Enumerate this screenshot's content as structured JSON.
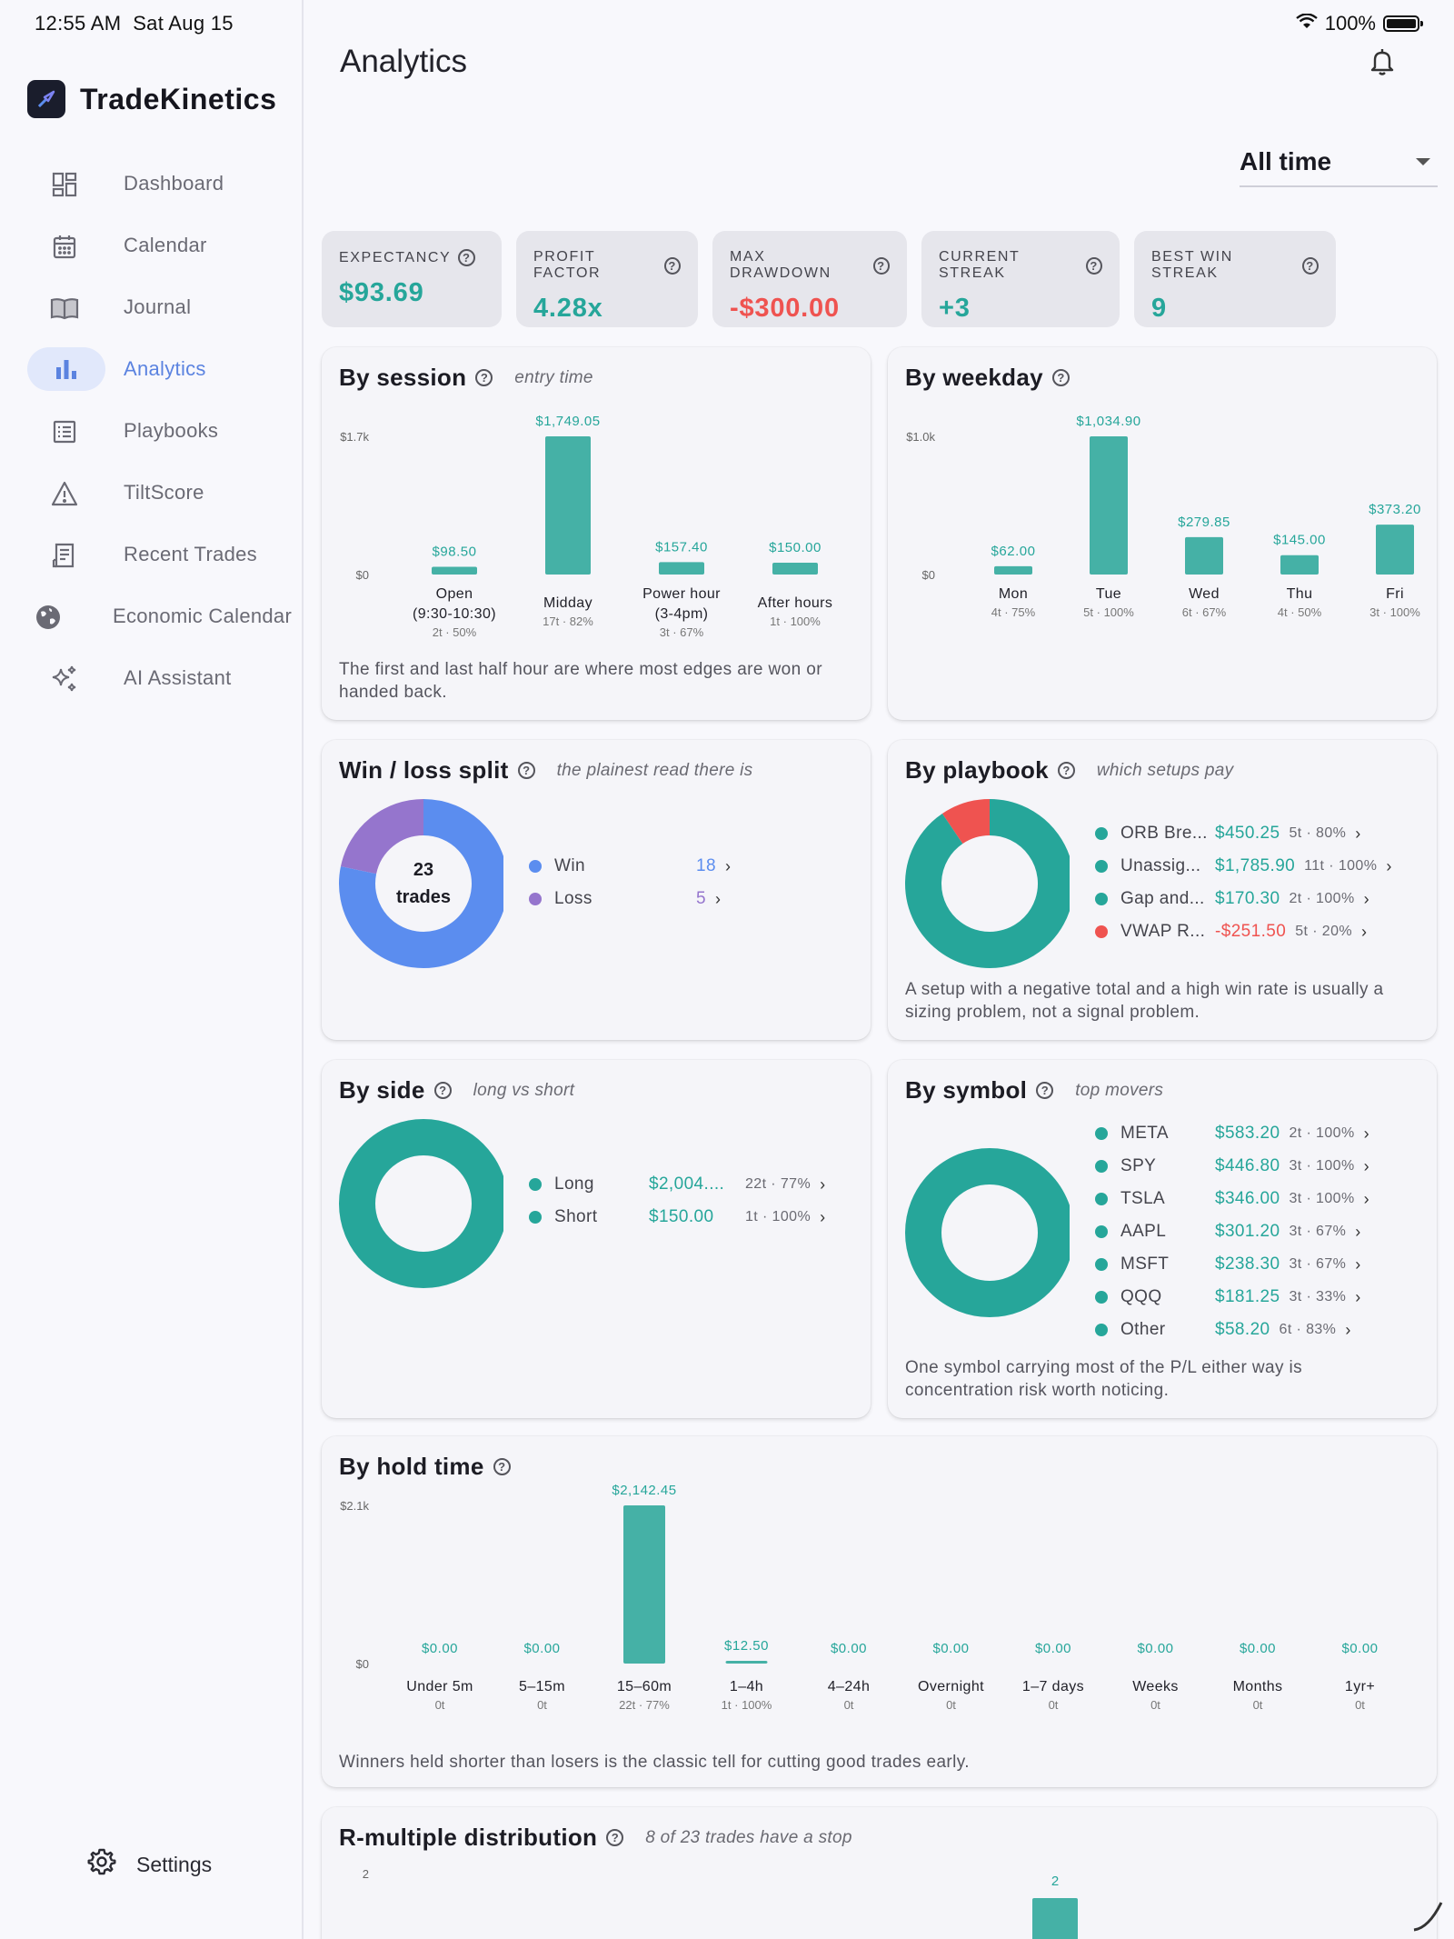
{
  "status_bar": {
    "time": "12:55 AM",
    "date": "Sat Aug 15",
    "battery": "100%"
  },
  "brand": {
    "name": "TradeKinetics"
  },
  "nav": {
    "items": [
      {
        "label": "Dashboard",
        "icon": "dashboard-icon"
      },
      {
        "label": "Calendar",
        "icon": "calendar-icon"
      },
      {
        "label": "Journal",
        "icon": "journal-icon"
      },
      {
        "label": "Analytics",
        "icon": "bar-chart-icon",
        "active": true
      },
      {
        "label": "Playbooks",
        "icon": "list-icon"
      },
      {
        "label": "TiltScore",
        "icon": "warning-icon"
      },
      {
        "label": "Recent Trades",
        "icon": "receipt-icon"
      },
      {
        "label": "Economic Calendar",
        "icon": "globe-icon"
      },
      {
        "label": "AI Assistant",
        "icon": "sparkles-icon"
      }
    ],
    "settings": "Settings"
  },
  "page": {
    "title": "Analytics",
    "timeframe": "All time"
  },
  "stats": [
    {
      "label": "EXPECTANCY",
      "value": "$93.69",
      "color": "#26a69a"
    },
    {
      "label": "PROFIT FACTOR",
      "value": "4.28x",
      "color": "#26a69a"
    },
    {
      "label": "MAX DRAWDOWN",
      "value": "-$300.00",
      "color": "#ef5350"
    },
    {
      "label": "CURRENT STREAK",
      "value": "+3",
      "color": "#26a69a"
    },
    {
      "label": "BEST WIN STREAK",
      "value": "9",
      "color": "#26a69a"
    }
  ],
  "colors": {
    "teal": "#26a69a",
    "bar": "#45b1a6",
    "red": "#ef5350",
    "blue": "#5b8def",
    "purple": "#9575cd"
  },
  "cards": {
    "session": {
      "title": "By session",
      "subtitle": "entry time",
      "note": "The first and last half hour are where most edges are won or handed back."
    },
    "weekday": {
      "title": "By weekday"
    },
    "winloss": {
      "title": "Win / loss split",
      "subtitle": "the plainest read there is",
      "center_top": "23",
      "center_bottom": "trades",
      "items": [
        {
          "name": "Win",
          "value": "18",
          "color": "#5b8def"
        },
        {
          "name": "Loss",
          "value": "5",
          "color": "#9575cd"
        }
      ]
    },
    "playbook": {
      "title": "By playbook",
      "subtitle": "which setups pay",
      "items": [
        {
          "name": "ORB Bre...",
          "value": "$450.25",
          "meta": "5t · 80%",
          "color": "#26a69a"
        },
        {
          "name": "Unassig...",
          "value": "$1,785.90",
          "meta": "11t · 100%",
          "color": "#26a69a"
        },
        {
          "name": "Gap and...",
          "value": "$170.30",
          "meta": "2t · 100%",
          "color": "#26a69a"
        },
        {
          "name": "VWAP R...",
          "value": "-$251.50",
          "meta": "5t · 20%",
          "color": "#ef5350"
        }
      ],
      "note": "A setup with a negative total and a high win rate is usually a sizing problem, not a signal problem."
    },
    "side": {
      "title": "By side",
      "subtitle": "long vs short",
      "items": [
        {
          "name": "Long",
          "value": "$2,004....",
          "meta": "22t · 77%",
          "color": "#26a69a"
        },
        {
          "name": "Short",
          "value": "$150.00",
          "meta": "1t · 100%",
          "color": "#26a69a"
        }
      ]
    },
    "symbol": {
      "title": "By symbol",
      "subtitle": "top movers",
      "items": [
        {
          "name": "META",
          "value": "$583.20",
          "meta": "2t · 100%",
          "color": "#26a69a"
        },
        {
          "name": "SPY",
          "value": "$446.80",
          "meta": "3t · 100%",
          "color": "#26a69a"
        },
        {
          "name": "TSLA",
          "value": "$346.00",
          "meta": "3t · 100%",
          "color": "#26a69a"
        },
        {
          "name": "AAPL",
          "value": "$301.20",
          "meta": "3t · 67%",
          "color": "#26a69a"
        },
        {
          "name": "MSFT",
          "value": "$238.30",
          "meta": "3t · 67%",
          "color": "#26a69a"
        },
        {
          "name": "QQQ",
          "value": "$181.25",
          "meta": "3t · 33%",
          "color": "#26a69a"
        },
        {
          "name": "Other",
          "value": "$58.20",
          "meta": "6t · 83%",
          "color": "#26a69a"
        }
      ],
      "note": "One symbol carrying most of the P/L either way is concentration risk worth noticing."
    },
    "hold": {
      "title": "By hold time",
      "note": "Winners held shorter than losers is the classic tell for cutting good trades early."
    },
    "rmultiple": {
      "title": "R-multiple distribution",
      "subtitle": "8 of 23 trades have a stop"
    }
  },
  "chart_data": [
    {
      "id": "session",
      "type": "bar",
      "ylim": [
        0,
        1749.05
      ],
      "ytick_labels": [
        "$1.7k",
        "$0"
      ],
      "categories": [
        {
          "name": [
            "Open",
            "(9:30-10:30)"
          ],
          "meta": "2t · 50%"
        },
        {
          "name": [
            "Midday"
          ],
          "meta": "17t · 82%"
        },
        {
          "name": [
            "Power hour",
            "(3-4pm)"
          ],
          "meta": "3t · 67%"
        },
        {
          "name": [
            "After hours"
          ],
          "meta": "1t · 100%"
        }
      ],
      "values": [
        98.5,
        1749.05,
        157.4,
        150.0
      ],
      "value_labels": [
        "$98.50",
        "$1,749.05",
        "$157.40",
        "$150.00"
      ]
    },
    {
      "id": "weekday",
      "type": "bar",
      "ylim": [
        0,
        1034.9
      ],
      "ytick_labels": [
        "$1.0k",
        "$0"
      ],
      "categories": [
        {
          "name": [
            "Mon"
          ],
          "meta": "4t · 75%"
        },
        {
          "name": [
            "Tue"
          ],
          "meta": "5t · 100%"
        },
        {
          "name": [
            "Wed"
          ],
          "meta": "6t · 67%"
        },
        {
          "name": [
            "Thu"
          ],
          "meta": "4t · 50%"
        },
        {
          "name": [
            "Fri"
          ],
          "meta": "3t · 100%"
        }
      ],
      "values": [
        62.0,
        1034.9,
        279.85,
        145.0,
        373.2
      ],
      "value_labels": [
        "$62.00",
        "$1,034.90",
        "$279.85",
        "$145.00",
        "$373.20"
      ]
    },
    {
      "id": "winloss",
      "type": "pie",
      "categories": [
        "Win",
        "Loss"
      ],
      "values": [
        18,
        5
      ]
    },
    {
      "id": "playbook",
      "type": "pie",
      "categories": [
        "ORB Bre...",
        "Unassig...",
        "Gap and...",
        "VWAP R..."
      ],
      "values": [
        450.25,
        1785.9,
        170.3,
        -251.5
      ]
    },
    {
      "id": "side",
      "type": "pie",
      "categories": [
        "Long",
        "Short"
      ],
      "values": [
        2004.0,
        150.0
      ]
    },
    {
      "id": "symbol",
      "type": "pie",
      "categories": [
        "META",
        "SPY",
        "TSLA",
        "AAPL",
        "MSFT",
        "QQQ",
        "Other"
      ],
      "values": [
        583.2,
        446.8,
        346.0,
        301.2,
        238.3,
        181.25,
        58.2
      ]
    },
    {
      "id": "hold",
      "type": "bar",
      "ylim": [
        0,
        2142.45
      ],
      "ytick_labels": [
        "$2.1k",
        "$0"
      ],
      "categories": [
        {
          "name": [
            "Under 5m"
          ],
          "meta": "0t"
        },
        {
          "name": [
            "5–15m"
          ],
          "meta": "0t"
        },
        {
          "name": [
            "15–60m"
          ],
          "meta": "22t · 77%"
        },
        {
          "name": [
            "1–4h"
          ],
          "meta": "1t · 100%"
        },
        {
          "name": [
            "4–24h"
          ],
          "meta": "0t"
        },
        {
          "name": [
            "Overnight"
          ],
          "meta": "0t"
        },
        {
          "name": [
            "1–7 days"
          ],
          "meta": "0t"
        },
        {
          "name": [
            "Weeks"
          ],
          "meta": "0t"
        },
        {
          "name": [
            "Months"
          ],
          "meta": "0t"
        },
        {
          "name": [
            "1yr+"
          ],
          "meta": "0t"
        }
      ],
      "values": [
        0,
        0,
        2142.45,
        12.5,
        0,
        0,
        0,
        0,
        0,
        0
      ],
      "value_labels": [
        "$0.00",
        "$0.00",
        "$2,142.45",
        "$12.50",
        "$0.00",
        "$0.00",
        "$0.00",
        "$0.00",
        "$0.00",
        "$0.00"
      ]
    },
    {
      "id": "rmultiple",
      "type": "bar",
      "ylim": [
        0,
        2
      ],
      "ytick_labels": [
        "2"
      ],
      "values": [
        2
      ],
      "value_labels": [
        "2"
      ]
    }
  ]
}
